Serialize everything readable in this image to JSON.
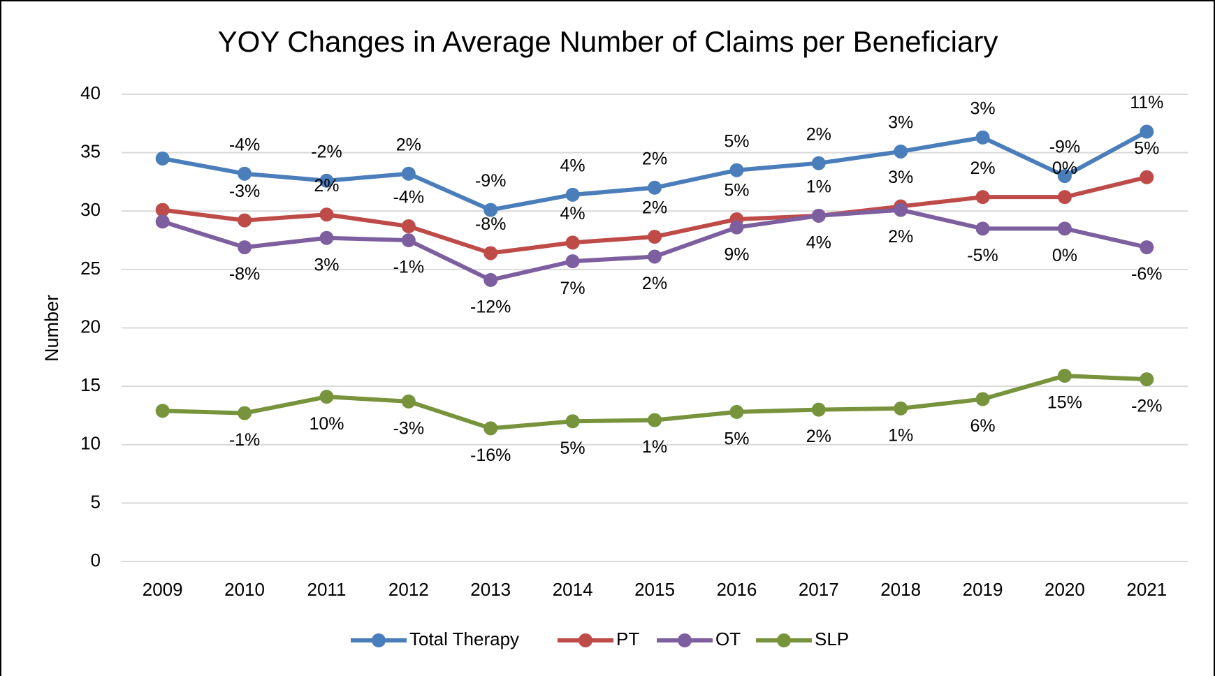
{
  "chart_data": {
    "type": "line",
    "title": "YOY Changes in Average Number of Claims per Beneficiary",
    "y_label": "Number",
    "categories": [
      "2009",
      "2010",
      "2011",
      "2012",
      "2013",
      "2014",
      "2015",
      "2016",
      "2017",
      "2018",
      "2019",
      "2020",
      "2021"
    ],
    "ylim": [
      0,
      40
    ],
    "yticks": [
      0,
      5,
      10,
      15,
      20,
      25,
      30,
      35,
      40
    ],
    "grid": true,
    "legend": "bottom",
    "series": [
      {
        "name": "Total Therapy",
        "color": "#4a7ebb",
        "label_position": "above",
        "values": [
          34.5,
          33.2,
          32.6,
          33.2,
          30.1,
          31.4,
          32.0,
          33.5,
          34.1,
          35.1,
          36.3,
          33.0,
          36.8
        ],
        "annotations": [
          null,
          "-4%",
          "-2%",
          "2%",
          "-9%",
          "4%",
          "2%",
          "5%",
          "2%",
          "3%",
          "3%",
          "-9%",
          "11%"
        ]
      },
      {
        "name": "PT",
        "color": "#be4b48",
        "label_position": "above",
        "values": [
          30.1,
          29.2,
          29.7,
          28.7,
          26.4,
          27.3,
          27.8,
          29.3,
          29.6,
          30.4,
          31.2,
          31.2,
          32.9
        ],
        "annotations": [
          null,
          "-3%",
          "2%",
          "-4%",
          "-8%",
          "4%",
          "2%",
          "5%",
          "1%",
          "3%",
          "2%",
          "0%",
          "5%"
        ]
      },
      {
        "name": "OT",
        "color": "#7d5fa0",
        "label_position": "below",
        "values": [
          29.1,
          26.9,
          27.7,
          27.5,
          24.1,
          25.7,
          26.1,
          28.6,
          29.6,
          30.1,
          28.5,
          28.5,
          26.9
        ],
        "annotations": [
          null,
          "-8%",
          "3%",
          "-1%",
          "-12%",
          "7%",
          "2%",
          "9%",
          "4%",
          "2%",
          "-5%",
          "0%",
          "-6%"
        ]
      },
      {
        "name": "SLP",
        "color": "#77933c",
        "label_position": "below",
        "values": [
          12.9,
          12.7,
          14.1,
          13.7,
          11.4,
          12.0,
          12.1,
          12.8,
          13.0,
          13.1,
          13.9,
          15.9,
          15.6
        ],
        "annotations": [
          null,
          "-1%",
          "10%",
          "-3%",
          "-16%",
          "5%",
          "1%",
          "5%",
          "2%",
          "1%",
          "6%",
          "15%",
          "-2%"
        ]
      }
    ]
  }
}
